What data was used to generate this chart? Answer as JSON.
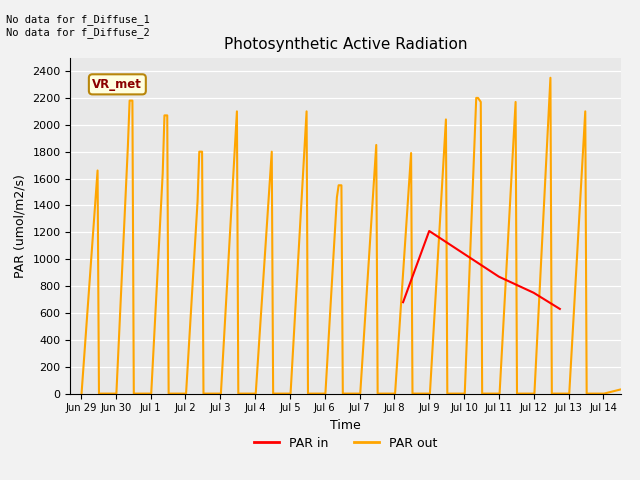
{
  "title": "Photosynthetic Active Radiation",
  "xlabel": "Time",
  "ylabel": "PAR (umol/m2/s)",
  "ylim": [
    0,
    2500
  ],
  "yticks": [
    0,
    200,
    400,
    600,
    800,
    1000,
    1200,
    1400,
    1600,
    1800,
    2000,
    2200,
    2400
  ],
  "x_tick_labels": [
    "Jun 29",
    "Jun 30",
    "Jul 1",
    "Jul 2",
    "Jul 3",
    "Jul 4",
    "Jul 5",
    "Jul 6",
    "Jul 7",
    "Jul 8",
    "Jul 9",
    "Jul 10",
    "Jul 11",
    "Jul 12",
    "Jul 13",
    "Jul 14"
  ],
  "color_par_out": "#FFA500",
  "color_par_in": "#FF0000",
  "color_plot_bg": "#E8E8E8",
  "color_fig_bg": "#F2F2F2",
  "annotation_text": "No data for f_Diffuse_1\nNo data for f_Diffuse_2",
  "vr_met_label": "VR_met",
  "legend_par_in": "PAR in",
  "legend_par_out": "PAR out",
  "par_out_x": [
    0.02,
    0.48,
    0.52,
    1.02,
    1.35,
    1.4,
    1.48,
    1.52,
    2.02,
    2.35,
    2.4,
    2.48,
    2.52,
    3.02,
    3.35,
    3.4,
    3.48,
    3.52,
    4.02,
    4.48,
    4.52,
    5.02,
    5.48,
    5.52,
    6.02,
    6.48,
    6.52,
    7.02,
    7.35,
    7.4,
    7.48,
    7.52,
    8.02,
    8.48,
    8.52,
    9.02,
    9.48,
    9.52,
    10.02,
    10.48,
    10.52,
    11.02,
    11.35,
    11.4,
    11.48,
    11.52,
    12.02,
    12.48,
    12.52,
    13.02,
    13.48,
    13.52,
    14.02,
    14.48,
    14.52,
    15.02,
    15.48
  ],
  "par_out_y": [
    0,
    1660,
    0,
    0,
    1840,
    2180,
    2180,
    0,
    0,
    1640,
    2070,
    2070,
    0,
    0,
    1430,
    1800,
    1800,
    0,
    0,
    2100,
    0,
    0,
    1800,
    0,
    0,
    2100,
    0,
    0,
    1460,
    1550,
    1550,
    0,
    0,
    1850,
    0,
    0,
    1790,
    0,
    0,
    2040,
    0,
    0,
    2200,
    2200,
    2170,
    0,
    0,
    2170,
    0,
    0,
    2350,
    0,
    0,
    2100,
    0,
    0,
    30
  ],
  "par_in_x": [
    9.25,
    10.0,
    11.0,
    12.0,
    13.0,
    13.75
  ],
  "par_in_y": [
    680,
    1210,
    1040,
    870,
    750,
    630
  ]
}
